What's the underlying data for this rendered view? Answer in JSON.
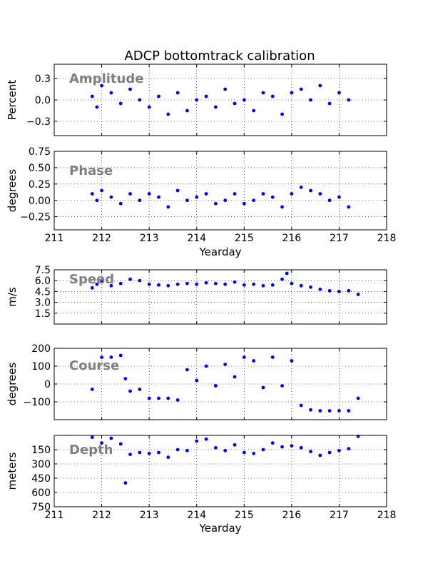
{
  "title": "ADCP bottomtrack calibration",
  "colors": {
    "points": "#0000ff",
    "panel_label": "#808080"
  },
  "chart_data": [
    {
      "id": "amplitude",
      "type": "scatter",
      "panel_label": "Amplitude",
      "ylabel": "Percent",
      "xlabel": "",
      "xlim": [
        211,
        218
      ],
      "ylim": [
        -0.5,
        0.5
      ],
      "yticks": [
        0.3,
        0.0,
        -0.3
      ],
      "ytick_labels": [
        "0.3",
        "0.0",
        "−0.3"
      ],
      "xticks": [
        211,
        212,
        213,
        214,
        215,
        216,
        217,
        218
      ],
      "xtick_labels": [],
      "grid": true,
      "x": [
        211.8,
        211.9,
        212.0,
        212.2,
        212.4,
        212.6,
        212.8,
        213.0,
        213.2,
        213.4,
        213.6,
        213.8,
        214.0,
        214.2,
        214.4,
        214.6,
        214.8,
        215.0,
        215.2,
        215.4,
        215.6,
        215.8,
        216.0,
        216.2,
        216.4,
        216.6,
        216.8,
        217.0,
        217.2
      ],
      "y": [
        0.05,
        -0.1,
        0.2,
        0.1,
        -0.05,
        0.15,
        0.0,
        -0.1,
        0.05,
        -0.2,
        0.1,
        -0.15,
        0.0,
        0.05,
        -0.1,
        0.15,
        -0.05,
        0.0,
        -0.15,
        0.1,
        0.05,
        -0.2,
        0.1,
        0.15,
        0.0,
        0.2,
        -0.05,
        0.1,
        0.0
      ]
    },
    {
      "id": "phase",
      "type": "scatter",
      "panel_label": "Phase",
      "ylabel": "degrees",
      "xlabel": "Yearday",
      "xlim": [
        211,
        218
      ],
      "ylim": [
        -0.45,
        0.75
      ],
      "yticks": [
        0.75,
        0.5,
        0.25,
        0.0,
        -0.25
      ],
      "ytick_labels": [
        "0.75",
        "0.50",
        "0.25",
        "0.00",
        "−0.25"
      ],
      "xticks": [
        211,
        212,
        213,
        214,
        215,
        216,
        217,
        218
      ],
      "xtick_labels": [
        "211",
        "212",
        "213",
        "214",
        "215",
        "216",
        "217",
        "218"
      ],
      "grid": true,
      "x": [
        211.8,
        211.9,
        212.0,
        212.2,
        212.4,
        212.6,
        212.8,
        213.0,
        213.2,
        213.4,
        213.6,
        213.8,
        214.0,
        214.2,
        214.4,
        214.6,
        214.8,
        215.0,
        215.2,
        215.4,
        215.6,
        215.8,
        216.0,
        216.2,
        216.4,
        216.6,
        216.8,
        217.0,
        217.2
      ],
      "y": [
        0.1,
        0.0,
        0.15,
        0.05,
        -0.05,
        0.1,
        0.0,
        0.1,
        0.05,
        -0.1,
        0.15,
        0.0,
        0.05,
        0.1,
        -0.05,
        0.0,
        0.1,
        -0.05,
        0.0,
        0.1,
        0.05,
        -0.1,
        0.1,
        0.2,
        0.15,
        0.1,
        0.0,
        0.05,
        -0.1
      ]
    },
    {
      "id": "speed",
      "type": "scatter",
      "panel_label": "Speed",
      "ylabel": "m/s",
      "xlabel": "",
      "xlim": [
        211,
        218
      ],
      "ylim": [
        0,
        7.5
      ],
      "yticks": [
        7.5,
        6.0,
        4.5,
        3.0,
        1.5
      ],
      "ytick_labels": [
        "7.5",
        "6.0",
        "4.5",
        "3.0",
        "1.5"
      ],
      "xticks": [
        211,
        212,
        213,
        214,
        215,
        216,
        217,
        218
      ],
      "xtick_labels": [],
      "grid": true,
      "x": [
        211.8,
        211.9,
        212.0,
        212.2,
        212.4,
        212.6,
        212.8,
        213.0,
        213.2,
        213.4,
        213.6,
        213.8,
        214.0,
        214.2,
        214.4,
        214.6,
        214.8,
        215.0,
        215.2,
        215.4,
        215.6,
        215.8,
        215.9,
        216.0,
        216.2,
        216.4,
        216.6,
        216.8,
        217.0,
        217.2,
        217.4
      ],
      "y": [
        5.0,
        5.5,
        6.0,
        5.3,
        5.6,
        6.2,
        6.0,
        5.5,
        5.4,
        5.3,
        5.5,
        5.6,
        5.5,
        5.7,
        5.6,
        5.5,
        5.8,
        5.4,
        5.5,
        5.3,
        5.4,
        6.2,
        7.0,
        5.6,
        5.3,
        5.1,
        4.8,
        4.6,
        4.5,
        4.6,
        4.1
      ]
    },
    {
      "id": "course",
      "type": "scatter",
      "panel_label": "Course",
      "ylabel": "degrees",
      "xlabel": "",
      "xlim": [
        211,
        218
      ],
      "ylim": [
        -200,
        200
      ],
      "yticks": [
        200,
        100,
        0,
        -100
      ],
      "ytick_labels": [
        "200",
        "100",
        "0",
        "−100"
      ],
      "xticks": [
        211,
        212,
        213,
        214,
        215,
        216,
        217,
        218
      ],
      "xtick_labels": [],
      "grid": true,
      "x": [
        211.8,
        212.0,
        212.2,
        212.4,
        212.5,
        212.6,
        212.8,
        213.0,
        213.2,
        213.4,
        213.6,
        213.8,
        214.0,
        214.2,
        214.4,
        214.6,
        214.8,
        215.0,
        215.2,
        215.4,
        215.6,
        215.8,
        216.0,
        216.2,
        216.4,
        216.6,
        216.8,
        217.0,
        217.2,
        217.4
      ],
      "y": [
        -30,
        150,
        150,
        160,
        30,
        -40,
        -30,
        -80,
        -80,
        -80,
        -90,
        80,
        20,
        100,
        -10,
        110,
        40,
        150,
        130,
        -20,
        150,
        -10,
        130,
        -120,
        -145,
        -150,
        -150,
        -150,
        -150,
        -80
      ]
    },
    {
      "id": "depth",
      "type": "scatter",
      "panel_label": "Depth",
      "ylabel": "meters",
      "xlabel": "Yearday",
      "xlim": [
        211,
        218
      ],
      "ylim": [
        750,
        0
      ],
      "yticks": [
        150,
        300,
        450,
        600,
        750
      ],
      "ytick_labels": [
        "150",
        "300",
        "450",
        "600",
        "750"
      ],
      "xticks": [
        211,
        212,
        213,
        214,
        215,
        216,
        217,
        218
      ],
      "xtick_labels": [
        "211",
        "212",
        "213",
        "214",
        "215",
        "216",
        "217",
        "218"
      ],
      "grid": true,
      "x": [
        211.8,
        212.0,
        212.2,
        212.4,
        212.5,
        212.6,
        212.8,
        213.0,
        213.2,
        213.4,
        213.6,
        213.8,
        214.0,
        214.2,
        214.4,
        214.6,
        214.8,
        215.0,
        215.2,
        215.4,
        215.6,
        215.8,
        216.0,
        216.2,
        216.4,
        216.6,
        216.8,
        217.0,
        217.2,
        217.4
      ],
      "y": [
        20,
        80,
        30,
        90,
        500,
        200,
        180,
        190,
        180,
        230,
        150,
        160,
        60,
        40,
        130,
        160,
        100,
        180,
        190,
        150,
        80,
        120,
        110,
        130,
        170,
        210,
        180,
        160,
        140,
        10
      ]
    }
  ]
}
